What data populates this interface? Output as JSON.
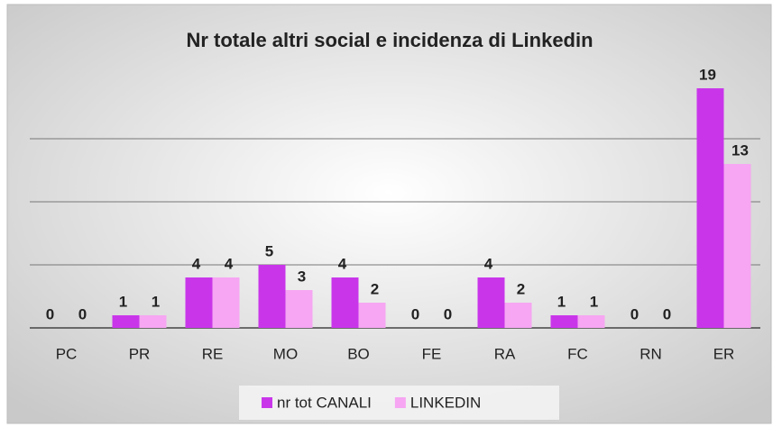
{
  "chart_data": {
    "type": "bar",
    "title": "Nr totale altri social e incidenza di Linkedin",
    "categories": [
      "PC",
      "PR",
      "RE",
      "MO",
      "BO",
      "FE",
      "RA",
      "FC",
      "RN",
      "ER"
    ],
    "series": [
      {
        "name": "nr tot CANALI",
        "color": "#c936ea",
        "values": [
          0,
          1,
          4,
          5,
          4,
          0,
          4,
          1,
          0,
          19
        ]
      },
      {
        "name": "LINKEDIN",
        "color": "#f6a6f2",
        "values": [
          0,
          1,
          4,
          3,
          2,
          0,
          2,
          1,
          0,
          13
        ]
      }
    ],
    "ylim": [
      0,
      20
    ],
    "yticks": [
      0,
      5,
      10,
      15
    ],
    "grid": true,
    "show_ytick_labels": false,
    "legend": "bottom"
  }
}
